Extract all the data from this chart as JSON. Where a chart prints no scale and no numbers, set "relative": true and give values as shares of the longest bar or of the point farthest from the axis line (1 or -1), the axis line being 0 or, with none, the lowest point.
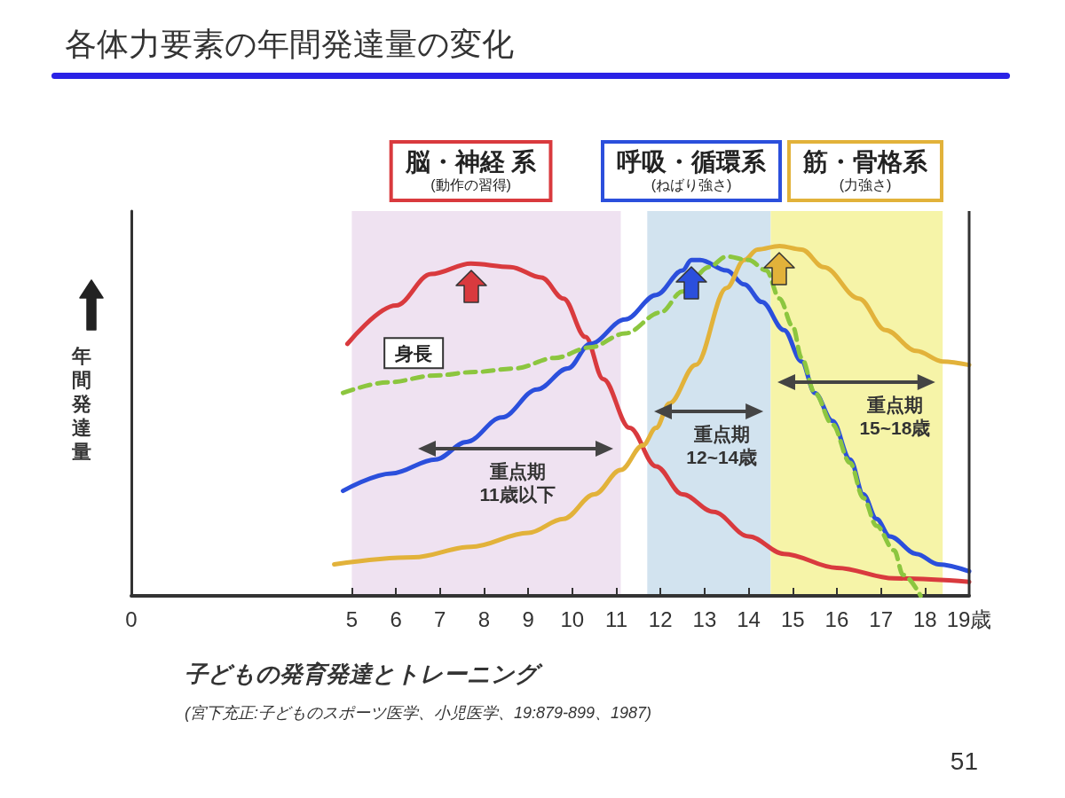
{
  "chart_data": {
    "type": "line",
    "title": "各体力要素の年間発達量の変化",
    "ylabel": "年間発達量",
    "relative": true,
    "xlim": [
      0,
      19
    ],
    "xticks": [
      0,
      5,
      6,
      7,
      8,
      9,
      10,
      11,
      12,
      13,
      14,
      15,
      16,
      17,
      18,
      {
        "value": 19,
        "label": "19歳"
      }
    ],
    "series": [
      {
        "name": "脳・神経 系\n(動作の習得)",
        "color": "#d93a3e",
        "x": [
          4.9,
          6.0,
          6.8,
          7.7,
          8.6,
          9.3,
          9.8,
          10.3,
          10.7,
          11.3,
          11.9,
          12.5,
          13.2,
          14.0,
          14.8,
          16.0,
          17.3,
          19.0
        ],
        "values": [
          0.72,
          0.83,
          0.92,
          0.95,
          0.94,
          0.91,
          0.85,
          0.74,
          0.62,
          0.48,
          0.37,
          0.29,
          0.24,
          0.17,
          0.12,
          0.08,
          0.05,
          0.04
        ]
      },
      {
        "name": "呼吸・循環系\n(ねばり強さ)",
        "color": "#2b4fdc",
        "x": [
          4.8,
          5.9,
          6.9,
          7.6,
          8.4,
          9.2,
          9.9,
          10.4,
          11.2,
          11.9,
          12.5,
          12.7,
          12.9,
          13.5,
          13.9,
          14.3,
          14.8,
          15.2,
          15.5,
          15.9,
          16.3,
          16.6,
          16.9,
          17.2,
          17.8,
          18.3,
          19.0
        ],
        "values": [
          0.3,
          0.35,
          0.39,
          0.44,
          0.51,
          0.59,
          0.65,
          0.72,
          0.79,
          0.86,
          0.93,
          0.96,
          0.96,
          0.93,
          0.89,
          0.84,
          0.76,
          0.67,
          0.58,
          0.5,
          0.39,
          0.29,
          0.22,
          0.17,
          0.12,
          0.09,
          0.07
        ]
      },
      {
        "name": "筋・骨格系\n(力強さ)",
        "color": "#e2b23a",
        "x": [
          4.6,
          6.4,
          7.7,
          9.0,
          9.8,
          10.5,
          11.1,
          11.6,
          11.9,
          12.2,
          12.8,
          13.5,
          13.9,
          14.2,
          14.7,
          15.2,
          15.7,
          16.5,
          17.1,
          17.8,
          18.4,
          19.0
        ],
        "values": [
          0.09,
          0.11,
          0.14,
          0.18,
          0.22,
          0.29,
          0.36,
          0.43,
          0.48,
          0.55,
          0.66,
          0.88,
          0.96,
          0.99,
          1.0,
          0.99,
          0.94,
          0.85,
          0.76,
          0.7,
          0.67,
          0.66
        ]
      },
      {
        "name": "身長",
        "color": "#8cc63f",
        "line_style": "dashed",
        "x": [
          4.8,
          5.8,
          6.9,
          7.8,
          8.7,
          9.6,
          10.4,
          11.2,
          12.0,
          12.5,
          13.1,
          13.5,
          14.0,
          14.4,
          14.7,
          15.0,
          15.2,
          15.5,
          15.9,
          16.3,
          16.6,
          16.9,
          17.3,
          17.5,
          17.9
        ],
        "values": [
          0.58,
          0.61,
          0.63,
          0.64,
          0.65,
          0.68,
          0.71,
          0.75,
          0.81,
          0.87,
          0.94,
          0.97,
          0.96,
          0.93,
          0.85,
          0.77,
          0.68,
          0.58,
          0.49,
          0.38,
          0.28,
          0.2,
          0.13,
          0.06,
          0
        ]
      }
    ],
    "bands": [
      {
        "axis": "x",
        "from": 5,
        "to": 11.1,
        "label": "重点期\n11歳以下",
        "color": "#efe2f1"
      },
      {
        "axis": "x",
        "from": 11.7,
        "to": 14.5,
        "label": "重点期\n12~14歳",
        "color": "#d2e3ef"
      },
      {
        "axis": "x",
        "from": 14.5,
        "to": 18.4,
        "label": "重点期\n15~18歳",
        "color": "#f6f4a8"
      }
    ],
    "annotations": [
      "子どもの発育発達とトレーニング",
      "(宮下充正:子どものスポーツ医学、小児医学、19:879-899、1987)",
      "51"
    ],
    "marker": "none",
    "grid": false,
    "legend": false
  }
}
